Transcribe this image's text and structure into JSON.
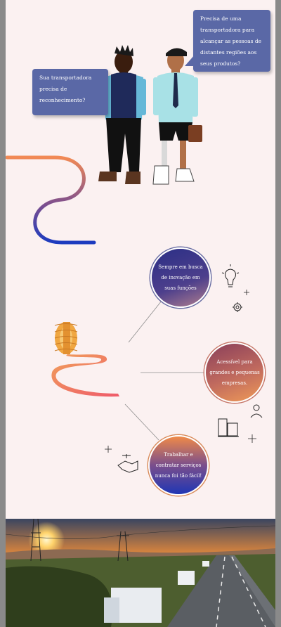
{
  "bubbles": {
    "left": "Sua transportadora precisa de reconhecimento?",
    "right": "Precisa de uma transportadora  para alcançar as pessoas de distantes regiões aos seus produtos?"
  },
  "circles": [
    {
      "text": "Sempre em busca de inovação em suas funções"
    },
    {
      "text": "Acessível para grandes e pequenas empresas."
    },
    {
      "text": "Trabalhar e contratar serviços nunca foi tão fácil!"
    }
  ],
  "colors": {
    "page_background": "#fbf1f1",
    "bubble": "#5a68a6",
    "navy": "#2b2f86",
    "coral": "#ef6b6b",
    "orange": "#f2a045"
  },
  "icons": [
    "lightbulb-icon",
    "gear-icon",
    "sparkle-icon",
    "businessman-icon",
    "buildings-icon",
    "handshake-icon",
    "tire-icon"
  ]
}
